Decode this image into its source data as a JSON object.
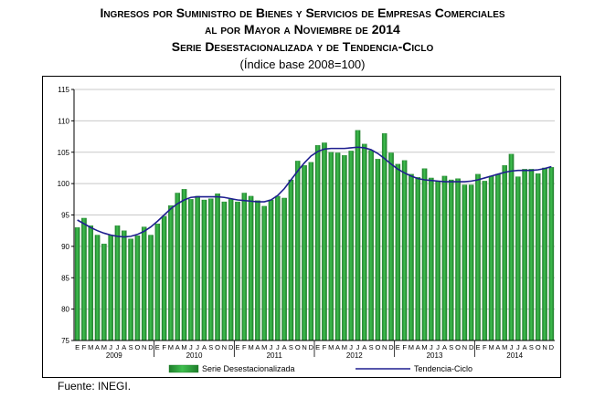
{
  "title_line1": "Ingresos por Suministro de Bienes y Servicios de Empresas Comerciales",
  "title_line2": "al por Mayor a Noviembre de 2014",
  "title_line3": "Serie Desestacionalizada y de Tendencia-Ciclo",
  "subtitle": "(Índice base 2008=100)",
  "source": "Fuente: INEGI.",
  "colors": {
    "bar": "#3fbf4f",
    "bar_dark": "#1e7d2a",
    "line": "#1f1f8f",
    "grid": "#c8c8c8"
  },
  "chart_data": {
    "type": "bar",
    "ylim": [
      75,
      115
    ],
    "yticks": [
      75,
      80,
      85,
      90,
      95,
      100,
      105,
      110,
      115
    ],
    "month_labels": [
      "E",
      "F",
      "M",
      "A",
      "M",
      "J",
      "J",
      "A",
      "S",
      "O",
      "N",
      "D"
    ],
    "years": [
      "2009",
      "2010",
      "2011",
      "2012",
      "2013",
      "2014"
    ],
    "legend_position": "bottom",
    "grid": true,
    "series": [
      {
        "name": "Serie Desestacionalizada",
        "type": "bar",
        "values": [
          93.0,
          94.5,
          93.3,
          91.8,
          90.4,
          91.8,
          93.3,
          92.5,
          91.2,
          91.7,
          93.1,
          91.8,
          93.6,
          94.8,
          96.5,
          98.5,
          99.1,
          97.5,
          98.0,
          97.4,
          97.6,
          98.4,
          97.1,
          97.5,
          97.1,
          98.5,
          98.0,
          97.3,
          96.4,
          97.4,
          98.0,
          97.7,
          100.6,
          103.6,
          102.9,
          103.4,
          106.1,
          106.5,
          105.0,
          104.9,
          104.5,
          105.2,
          108.5,
          106.3,
          105.3,
          103.9,
          108.0,
          104.9,
          103.1,
          103.7,
          101.5,
          101.0,
          102.4,
          100.9,
          100.4,
          101.2,
          100.6,
          100.8,
          99.8,
          99.8,
          101.5,
          100.4,
          101.2,
          101.5,
          102.9,
          104.7,
          101.1,
          102.3,
          102.3,
          101.6,
          102.5,
          102.6
        ]
      },
      {
        "name": "Tendencia-Ciclo",
        "type": "line",
        "values": [
          94.2,
          93.6,
          93.0,
          92.5,
          92.1,
          91.8,
          91.6,
          91.5,
          91.6,
          91.9,
          92.4,
          93.1,
          94.0,
          95.0,
          96.0,
          96.8,
          97.4,
          97.8,
          97.9,
          97.9,
          97.9,
          97.9,
          97.8,
          97.6,
          97.4,
          97.3,
          97.2,
          97.1,
          97.1,
          97.4,
          98.1,
          99.2,
          100.6,
          102.0,
          103.3,
          104.4,
          105.1,
          105.5,
          105.6,
          105.6,
          105.6,
          105.7,
          105.8,
          105.7,
          105.4,
          104.8,
          104.0,
          103.1,
          102.3,
          101.7,
          101.2,
          100.8,
          100.6,
          100.5,
          100.4,
          100.3,
          100.3,
          100.3,
          100.3,
          100.4,
          100.6,
          100.9,
          101.2,
          101.5,
          101.8,
          102.0,
          102.1,
          102.1,
          102.1,
          102.2,
          102.4,
          102.7
        ]
      }
    ]
  }
}
